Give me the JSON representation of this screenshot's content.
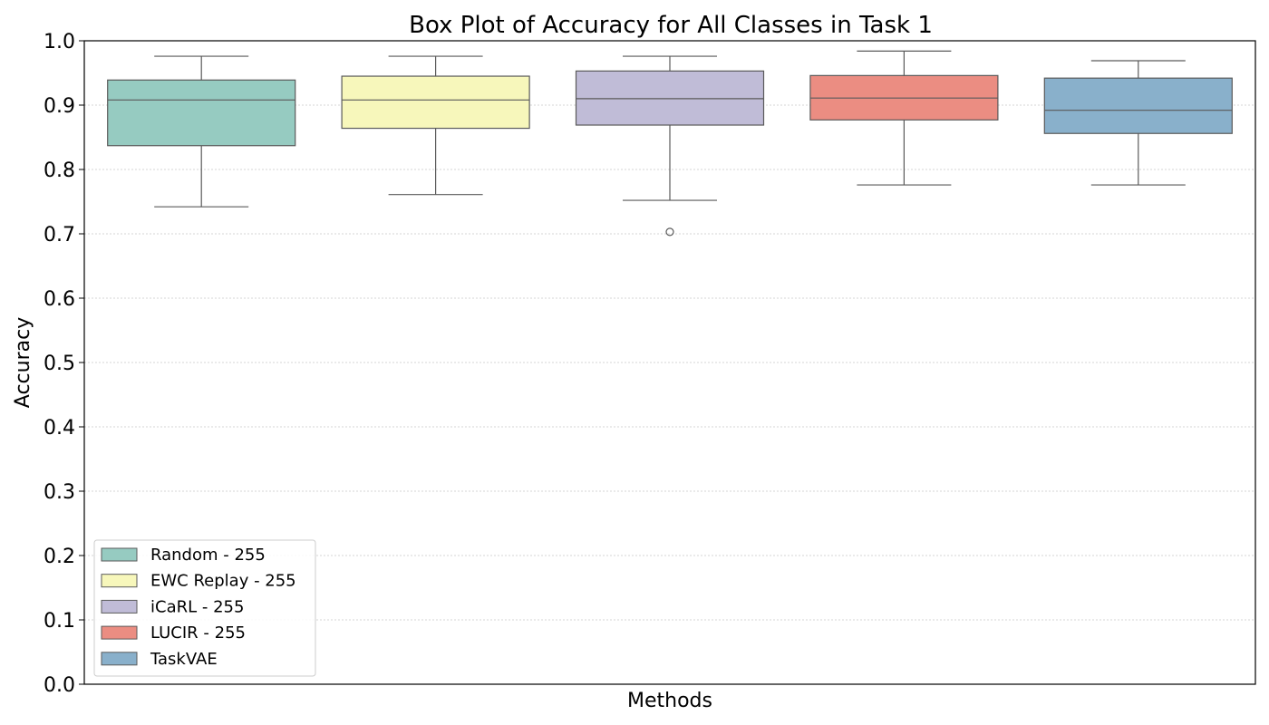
{
  "chart_data": {
    "type": "box",
    "title": "Box Plot of Accuracy for All Classes in Task 1",
    "xlabel": "Methods",
    "ylabel": "Accuracy",
    "ylim": [
      0.0,
      1.0
    ],
    "yticks": [
      "0.0",
      "0.1",
      "0.2",
      "0.3",
      "0.4",
      "0.5",
      "0.6",
      "0.7",
      "0.8",
      "0.9",
      "1.0"
    ],
    "grid": "horizontal dotted",
    "legend_position": "lower-left",
    "series": [
      {
        "name": "Random - 255",
        "color": "#96cbc1",
        "whisker_low": 0.742,
        "q1": 0.837,
        "median": 0.908,
        "q3": 0.939,
        "whisker_high": 0.976,
        "outliers": []
      },
      {
        "name": "EWC Replay - 255",
        "color": "#f7f7bb",
        "whisker_low": 0.761,
        "q1": 0.864,
        "median": 0.908,
        "q3": 0.945,
        "whisker_high": 0.976,
        "outliers": []
      },
      {
        "name": "iCaRL - 255",
        "color": "#c0bcd7",
        "whisker_low": 0.752,
        "q1": 0.869,
        "median": 0.91,
        "q3": 0.953,
        "whisker_high": 0.976,
        "outliers": [
          0.703
        ]
      },
      {
        "name": "LUCIR - 255",
        "color": "#eb8d82",
        "whisker_low": 0.776,
        "q1": 0.877,
        "median": 0.911,
        "q3": 0.946,
        "whisker_high": 0.984,
        "outliers": []
      },
      {
        "name": "TaskVAE",
        "color": "#89b0cb",
        "whisker_low": 0.776,
        "q1": 0.856,
        "median": 0.892,
        "q3": 0.942,
        "whisker_high": 0.969,
        "outliers": []
      }
    ]
  }
}
